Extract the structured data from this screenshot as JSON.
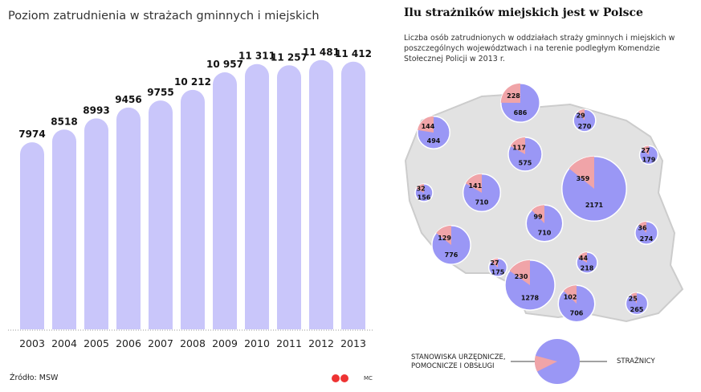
{
  "chart_data": [
    {
      "type": "bar",
      "title": "Poziom zatrudnienia w strażach gminnych i miejskich",
      "categories": [
        "2003",
        "2004",
        "2005",
        "2006",
        "2007",
        "2008",
        "2009",
        "2010",
        "2011",
        "2012",
        "2013"
      ],
      "values": [
        7974,
        8518,
        8993,
        9456,
        9755,
        10212,
        10957,
        11311,
        11257,
        11481,
        11412
      ],
      "value_labels": [
        "7974",
        "8518",
        "8993",
        "9456",
        "9755",
        "10 212",
        "10 957",
        "11 311",
        "11 257",
        "11 481",
        "11 412"
      ],
      "xlabel": "",
      "ylabel": "",
      "grid": false,
      "bar_color": "#c9c6fa"
    },
    {
      "type": "pie",
      "title": "Ilu strażników miejskich jest w Polsce",
      "subtitle": "Liczba osób zatrudnionych w oddziałach straży gminnych i miejskich w poszczególnych województwach i na terenie podległym Komendzie Stołecznej Policji w 2013 r.",
      "legend": {
        "admin": "STANOWISKA URZĘDNICZE, POMOCNICZE I OBSŁUGI",
        "guards": "STRAŻNICY"
      },
      "colors": {
        "admin": "#f0a4a8",
        "guards": "#9a97f5",
        "map": "#e2e2e2"
      },
      "pies": [
        {
          "admin": 228,
          "guards": 686
        },
        {
          "admin": 29,
          "guards": 270
        },
        {
          "admin": 144,
          "guards": 494
        },
        {
          "admin": 117,
          "guards": 575
        },
        {
          "admin": 27,
          "guards": 179
        },
        {
          "admin": 359,
          "guards": 2171
        },
        {
          "admin": 32,
          "guards": 156
        },
        {
          "admin": 141,
          "guards": 710
        },
        {
          "admin": 99,
          "guards": 710
        },
        {
          "admin": 36,
          "guards": 274
        },
        {
          "admin": 129,
          "guards": 776
        },
        {
          "admin": 27,
          "guards": 175
        },
        {
          "admin": 44,
          "guards": 218
        },
        {
          "admin": 230,
          "guards": 1278
        },
        {
          "admin": 102,
          "guards": 706
        },
        {
          "admin": 25,
          "guards": 265
        }
      ]
    }
  ],
  "footer": {
    "source": "Źródło: MSW",
    "author": "MC"
  }
}
